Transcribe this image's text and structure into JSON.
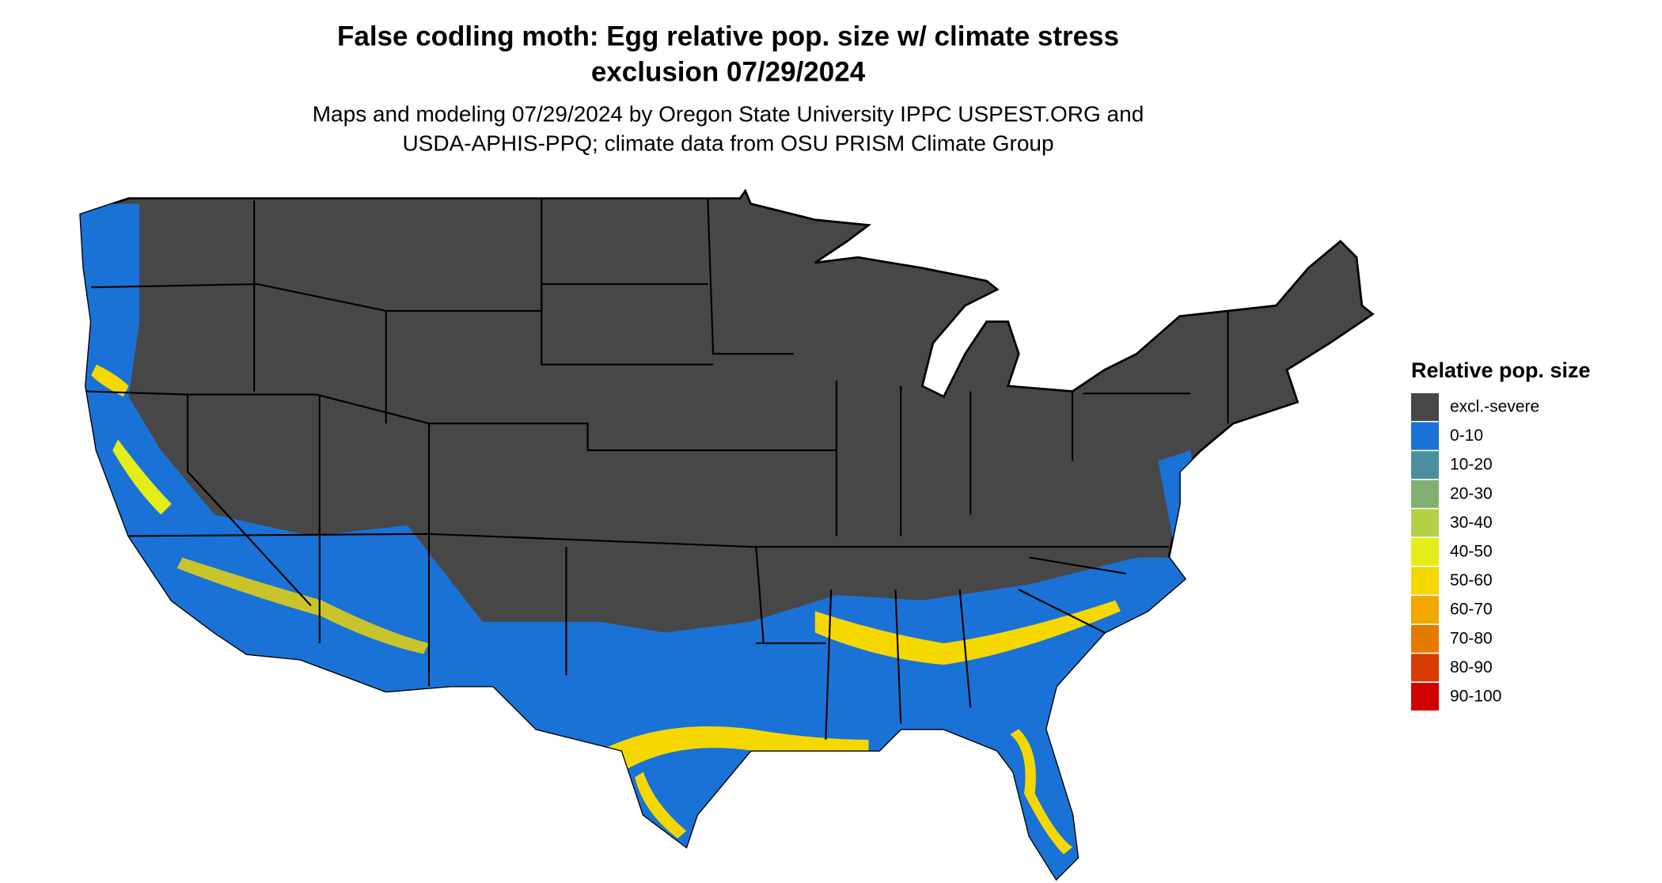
{
  "header": {
    "title": [
      "False codling moth: Egg relative pop. size w/ climate stress",
      "exclusion 07/29/2024"
    ],
    "subtitle": [
      "Maps and modeling 07/29/2024 by Oregon State University IPPC USPEST.ORG and",
      "USDA-APHIS-PPQ; climate data from OSU PRISM Climate Group"
    ]
  },
  "legend": {
    "title": "Relative pop. size",
    "items": [
      {
        "label": "excl.-severe",
        "color": "#474747"
      },
      {
        "label": "0-10",
        "color": "#1a72d6"
      },
      {
        "label": "10-20",
        "color": "#4a8fa0"
      },
      {
        "label": "20-30",
        "color": "#7fb070"
      },
      {
        "label": "30-40",
        "color": "#b6d145"
      },
      {
        "label": "40-50",
        "color": "#e3ee18"
      },
      {
        "label": "50-60",
        "color": "#f5d800"
      },
      {
        "label": "60-70",
        "color": "#f0a800"
      },
      {
        "label": "70-80",
        "color": "#e57a00"
      },
      {
        "label": "80-90",
        "color": "#d93c00"
      },
      {
        "label": "90-100",
        "color": "#d10000"
      }
    ]
  }
}
